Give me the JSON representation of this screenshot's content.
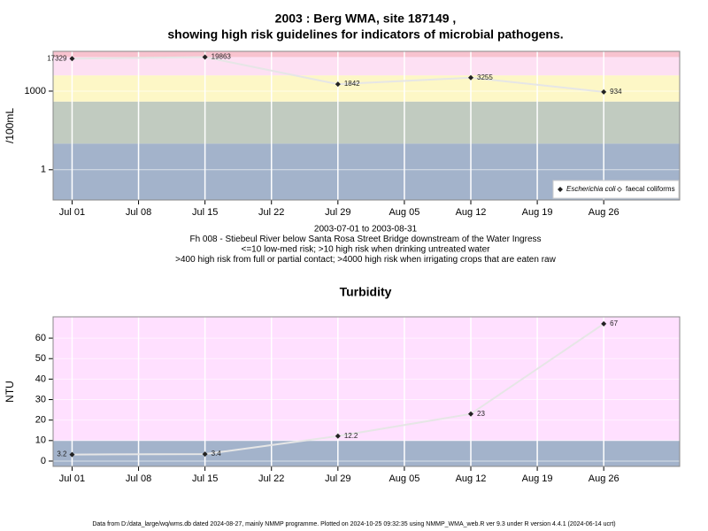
{
  "chart_data": [
    {
      "type": "line",
      "title": [
        "2003 : Berg WMA, site 187149 ,",
        "showing high risk guidelines for indicators of microbial pathogens."
      ],
      "ylabel": "/100mL",
      "log_scale": true,
      "ylim": [
        0.07,
        33000
      ],
      "yticks": [
        1,
        1000
      ],
      "xlim": [
        "Jun 29",
        "Sep 03"
      ],
      "xticks": [
        "Jul 01",
        "Jul 08",
        "Jul 15",
        "Jul 22",
        "Jul 29",
        "Aug 05",
        "Aug 12",
        "Aug 19",
        "Aug 26"
      ],
      "bands": [
        {
          "from": 0.07,
          "to": 10,
          "color": "#a3b3cb"
        },
        {
          "from": 10,
          "to": 400,
          "color": "#c1cbc0"
        },
        {
          "from": 400,
          "to": 4000,
          "color": "#fdf7c6"
        },
        {
          "from": 4000,
          "to": 20000,
          "color": "#fde0f3"
        },
        {
          "from": 20000,
          "to": 33000,
          "color": "#f8c3cf"
        }
      ],
      "grid": true,
      "x": [
        "Jul 01",
        "Jul 15",
        "Jul 29",
        "Aug 12",
        "Aug 26"
      ],
      "series": [
        {
          "name": "Escherichia coli",
          "color": "#222222",
          "line_color": "#e6e6e6",
          "values": [
            17329,
            19863,
            1842,
            3255,
            934
          ]
        }
      ],
      "legend": {
        "position": "lower right",
        "entries": [
          {
            "name": "Escherichia coli",
            "marker": "filled"
          },
          {
            "name": "faecal coliforms",
            "marker": "open"
          }
        ]
      },
      "notes": [
        "2003-07-01 to 2003-08-31",
        "Fh 008 - Stiebeul River below Santa Rosa Street Bridge downstream of the Water Ingress",
        "<=10 low-med risk; >10 high risk when drinking untreated water",
        ">400 high risk from full or partial contact; >4000 high risk when irrigating crops that are eaten raw"
      ]
    },
    {
      "type": "line",
      "title": "Turbidity",
      "ylabel": "NTU",
      "log_scale": false,
      "ylim": [
        -2.6,
        70.4
      ],
      "yticks": [
        0,
        10,
        20,
        30,
        40,
        50,
        60
      ],
      "xlim": [
        "Jun 29",
        "Sep 03"
      ],
      "xticks": [
        "Jul 01",
        "Jul 08",
        "Jul 15",
        "Jul 22",
        "Jul 29",
        "Aug 05",
        "Aug 12",
        "Aug 19",
        "Aug 26"
      ],
      "bands": [
        {
          "from": -2.6,
          "to": 10,
          "color": "#a3b3cb"
        },
        {
          "from": 10,
          "to": 70.4,
          "color": "#ffe0ff"
        }
      ],
      "grid": true,
      "x": [
        "Jul 01",
        "Jul 15",
        "Jul 29",
        "Aug 12",
        "Aug 26"
      ],
      "series": [
        {
          "name": "Turbidity",
          "color": "#222222",
          "line_color": "#e6e6e6",
          "values": [
            3.2,
            3.4,
            12.2,
            23,
            67
          ]
        }
      ]
    }
  ],
  "footer": "Data from D:/data_large/wq/wms.db dated 2024-08-27, mainly NMMP programme. Plotted on 2024-10-25 09:32:35 using NMMP_WMA_web.R ver 9.3 under R version 4.4.1 (2024-06-14 ucrt)"
}
